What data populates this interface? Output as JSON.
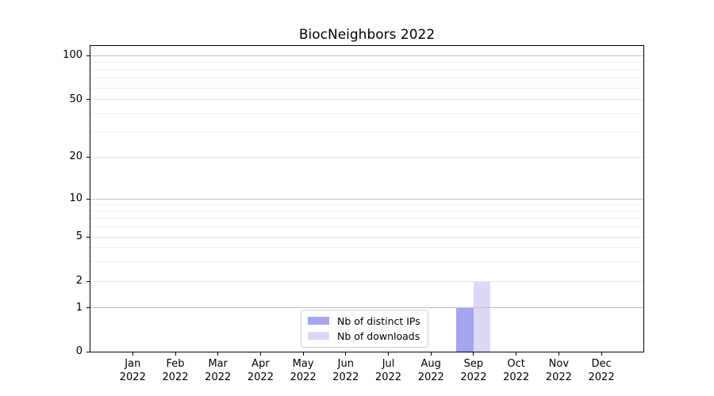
{
  "figure": {
    "title": "BiocNeighbors 2022"
  },
  "legend": {
    "items": [
      {
        "label": "Nb of distinct IPs",
        "color": "#a5a5ef"
      },
      {
        "label": "Nb of downloads",
        "color": "#dadaf8"
      }
    ]
  },
  "chart_data": {
    "type": "bar",
    "title": "BiocNeighbors 2022",
    "categories": [
      "Jan 2022",
      "Feb 2022",
      "Mar 2022",
      "Apr 2022",
      "May 2022",
      "Jun 2022",
      "Jul 2022",
      "Aug 2022",
      "Sep 2022",
      "Oct 2022",
      "Nov 2022",
      "Dec 2022"
    ],
    "series": [
      {
        "name": "Nb of distinct IPs",
        "color": "#a5a5ef",
        "values": [
          0,
          0,
          0,
          0,
          0,
          0,
          0,
          0,
          1,
          0,
          0,
          0
        ]
      },
      {
        "name": "Nb of downloads",
        "color": "#dadaf8",
        "values": [
          0,
          0,
          0,
          0,
          0,
          0,
          0,
          0,
          2,
          0,
          0,
          0
        ]
      }
    ],
    "y_axis": {
      "scale": "log-like (0 plus log-spaced ticks)",
      "tick_values": [
        0,
        1,
        2,
        5,
        10,
        20,
        50,
        100
      ],
      "tick_fracs": {
        "100": 0.0321,
        "50": 0.1754,
        "20": 0.3627,
        "10": 0.501,
        "5": 0.6244,
        "2": 0.7705,
        "1": 0.8575,
        "0": 1.0
      },
      "decade_values": [
        100,
        10,
        1
      ],
      "minor_values": [
        90,
        80,
        70,
        60,
        40,
        30,
        9,
        8,
        7,
        6,
        4,
        3
      ],
      "ylim": [
        0,
        117
      ]
    },
    "x_axis": {
      "first_center_frac": 0.0765,
      "step_frac": 0.07705,
      "tick_label_lines": 2
    },
    "legend_position": "lower center",
    "grid": "horizontal"
  },
  "colors": {
    "major_grid": "#c2c2c2",
    "labeled_grid": "#e6e6e6",
    "minor_grid": "#f0f0f0",
    "axis": "#000000",
    "background": "#ffffff"
  }
}
